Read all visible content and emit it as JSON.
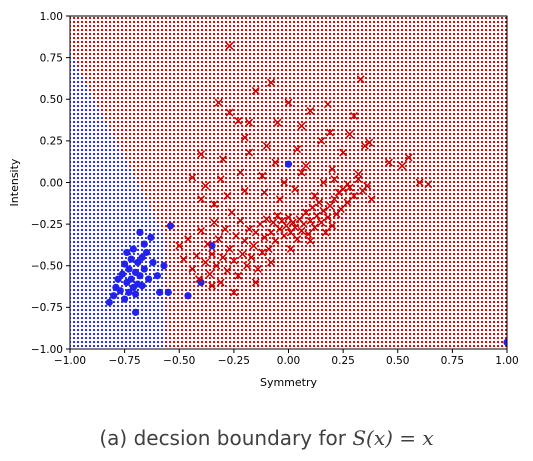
{
  "chart_data": {
    "type": "scatter",
    "title": "",
    "xlabel": "Symmetry",
    "ylabel": "Intensity",
    "xlim": [
      -1.0,
      1.0
    ],
    "ylim": [
      -1.0,
      1.0
    ],
    "xticks": [
      "−1.00",
      "−0.75",
      "−0.50",
      "−0.25",
      "0.00",
      "0.25",
      "0.50",
      "0.75",
      "1.00"
    ],
    "yticks": [
      "−1.00",
      "−0.75",
      "−0.50",
      "−0.25",
      "0.00",
      "0.25",
      "0.50",
      "0.75",
      "1.00"
    ],
    "grid": false,
    "legend": "none",
    "background_regions": [
      {
        "class": "blue",
        "color": "#2222ee",
        "boundary": [
          [
            -1.0,
            0.78
          ],
          [
            -0.56,
            -0.33
          ],
          [
            -0.56,
            -1.0
          ]
        ]
      },
      {
        "class": "red",
        "color": "#cc0000"
      }
    ],
    "series": [
      {
        "marker": "circle",
        "color": "#2222ee",
        "points": [
          [
            -0.82,
            -0.72
          ],
          [
            -0.8,
            -0.68
          ],
          [
            -0.79,
            -0.63
          ],
          [
            -0.78,
            -0.58
          ],
          [
            -0.77,
            -0.65
          ],
          [
            -0.76,
            -0.55
          ],
          [
            -0.75,
            -0.49
          ],
          [
            -0.75,
            -0.7
          ],
          [
            -0.74,
            -0.6
          ],
          [
            -0.74,
            -0.42
          ],
          [
            -0.73,
            -0.52
          ],
          [
            -0.73,
            -0.66
          ],
          [
            -0.72,
            -0.46
          ],
          [
            -0.72,
            -0.58
          ],
          [
            -0.71,
            -0.63
          ],
          [
            -0.71,
            -0.4
          ],
          [
            -0.7,
            -0.54
          ],
          [
            -0.7,
            -0.67
          ],
          [
            -0.69,
            -0.61
          ],
          [
            -0.69,
            -0.48
          ],
          [
            -0.68,
            -0.56
          ],
          [
            -0.68,
            -0.3
          ],
          [
            -0.67,
            -0.45
          ],
          [
            -0.67,
            -0.62
          ],
          [
            -0.66,
            -0.37
          ],
          [
            -0.66,
            -0.52
          ],
          [
            -0.65,
            -0.42
          ],
          [
            -0.64,
            -0.58
          ],
          [
            -0.63,
            -0.33
          ],
          [
            -0.62,
            -0.48
          ],
          [
            -0.6,
            -0.56
          ],
          [
            -0.59,
            -0.66
          ],
          [
            -0.57,
            -0.5
          ],
          [
            -0.55,
            -0.66
          ],
          [
            -0.54,
            -0.26
          ],
          [
            -0.46,
            -0.68
          ],
          [
            -0.4,
            -0.6
          ],
          [
            -0.35,
            -0.38
          ],
          [
            -0.7,
            -0.78
          ],
          [
            1.0,
            -0.96
          ],
          [
            0.0,
            0.11
          ]
        ]
      },
      {
        "marker": "x",
        "color": "#cc0000",
        "points": [
          [
            -0.5,
            -0.38
          ],
          [
            -0.48,
            -0.46
          ],
          [
            -0.46,
            -0.34
          ],
          [
            -0.44,
            -0.52
          ],
          [
            -0.42,
            -0.44
          ],
          [
            -0.41,
            -0.58
          ],
          [
            -0.4,
            -0.29
          ],
          [
            -0.38,
            -0.48
          ],
          [
            -0.37,
            -0.37
          ],
          [
            -0.36,
            -0.55
          ],
          [
            -0.35,
            -0.43
          ],
          [
            -0.34,
            -0.24
          ],
          [
            -0.33,
            -0.5
          ],
          [
            -0.32,
            -0.34
          ],
          [
            -0.31,
            -0.6
          ],
          [
            -0.3,
            -0.45
          ],
          [
            -0.29,
            -0.28
          ],
          [
            -0.28,
            -0.53
          ],
          [
            -0.27,
            -0.4
          ],
          [
            -0.26,
            -0.18
          ],
          [
            -0.25,
            -0.47
          ],
          [
            -0.24,
            -0.32
          ],
          [
            -0.23,
            -0.56
          ],
          [
            -0.22,
            -0.23
          ],
          [
            -0.21,
            -0.43
          ],
          [
            -0.2,
            -0.35
          ],
          [
            -0.19,
            -0.5
          ],
          [
            -0.18,
            -0.28
          ],
          [
            -0.17,
            -0.45
          ],
          [
            -0.16,
            -0.38
          ],
          [
            -0.15,
            -0.3
          ],
          [
            -0.14,
            -0.52
          ],
          [
            -0.13,
            -0.25
          ],
          [
            -0.12,
            -0.42
          ],
          [
            -0.11,
            -0.33
          ],
          [
            -0.1,
            -0.22
          ],
          [
            -0.09,
            -0.4
          ],
          [
            -0.08,
            -0.3
          ],
          [
            -0.07,
            -0.24
          ],
          [
            -0.06,
            -0.35
          ],
          [
            -0.05,
            -0.2
          ],
          [
            -0.04,
            -0.28
          ],
          [
            -0.03,
            -0.23
          ],
          [
            -0.02,
            -0.32
          ],
          [
            -0.01,
            -0.26
          ],
          [
            0.0,
            -0.21
          ],
          [
            0.01,
            -0.3
          ],
          [
            0.02,
            -0.24
          ],
          [
            0.03,
            -0.27
          ],
          [
            0.04,
            -0.34
          ],
          [
            0.05,
            -0.22
          ],
          [
            0.06,
            -0.29
          ],
          [
            0.07,
            -0.25
          ],
          [
            0.08,
            -0.18
          ],
          [
            0.09,
            -0.31
          ],
          [
            0.1,
            -0.23
          ],
          [
            0.11,
            -0.15
          ],
          [
            0.12,
            -0.27
          ],
          [
            0.13,
            -0.2
          ],
          [
            0.14,
            -0.12
          ],
          [
            0.15,
            -0.24
          ],
          [
            0.16,
            -0.17
          ],
          [
            0.17,
            -0.3
          ],
          [
            0.18,
            -0.21
          ],
          [
            0.19,
            -0.14
          ],
          [
            0.2,
            -0.26
          ],
          [
            0.21,
            -0.1
          ],
          [
            0.22,
            -0.19
          ],
          [
            0.23,
            -0.06
          ],
          [
            0.24,
            -0.16
          ],
          [
            0.25,
            -0.04
          ],
          [
            0.27,
            -0.12
          ],
          [
            0.28,
            -0.03
          ],
          [
            0.3,
            -0.08
          ],
          [
            0.32,
            0.02
          ],
          [
            0.34,
            -0.05
          ],
          [
            0.36,
            -0.02
          ],
          [
            0.38,
            -0.1
          ],
          [
            -0.27,
            0.82
          ],
          [
            0.33,
            0.62
          ],
          [
            0.0,
            0.48
          ],
          [
            0.18,
            0.47
          ],
          [
            0.1,
            0.43
          ],
          [
            -0.15,
            0.55
          ],
          [
            -0.27,
            0.42
          ],
          [
            -0.32,
            0.48
          ],
          [
            -0.23,
            0.37
          ],
          [
            -0.05,
            0.36
          ],
          [
            0.06,
            0.34
          ],
          [
            0.19,
            0.3
          ],
          [
            0.28,
            0.29
          ],
          [
            0.35,
            0.22
          ],
          [
            -0.2,
            0.27
          ],
          [
            -0.1,
            0.22
          ],
          [
            0.04,
            0.2
          ],
          [
            0.15,
            0.25
          ],
          [
            0.25,
            0.18
          ],
          [
            0.37,
            0.24
          ],
          [
            -0.4,
            0.17
          ],
          [
            -0.3,
            0.14
          ],
          [
            -0.18,
            0.18
          ],
          [
            -0.06,
            0.12
          ],
          [
            0.08,
            0.1
          ],
          [
            0.2,
            0.08
          ],
          [
            0.32,
            0.05
          ],
          [
            0.55,
            0.15
          ],
          [
            0.64,
            -0.01
          ],
          [
            -0.44,
            0.03
          ],
          [
            -0.38,
            -0.02
          ],
          [
            -0.31,
            0.02
          ],
          [
            -0.22,
            0.06
          ],
          [
            -0.12,
            0.04
          ],
          [
            -0.02,
            0.0
          ],
          [
            0.06,
            0.06
          ],
          [
            0.16,
            0.0
          ],
          [
            0.27,
            -0.01
          ],
          [
            -0.4,
            -0.1
          ],
          [
            -0.34,
            -0.13
          ],
          [
            -0.28,
            -0.08
          ],
          [
            -0.2,
            -0.05
          ],
          [
            -0.11,
            -0.06
          ],
          [
            -0.04,
            -0.1
          ],
          [
            0.03,
            -0.04
          ],
          [
            0.12,
            -0.08
          ],
          [
            0.21,
            0.02
          ],
          [
            -0.35,
            -0.62
          ],
          [
            -0.25,
            -0.66
          ],
          [
            -0.15,
            -0.6
          ],
          [
            -0.08,
            -0.48
          ],
          [
            0.01,
            -0.4
          ],
          [
            0.1,
            -0.35
          ],
          [
            0.46,
            0.12
          ],
          [
            0.52,
            0.1
          ],
          [
            0.6,
            0.0
          ],
          [
            -0.18,
            0.36
          ],
          [
            0.3,
            0.4
          ],
          [
            -0.08,
            0.6
          ]
        ]
      }
    ]
  },
  "caption": {
    "prefix": "(a) decsion boundary for ",
    "math": "S(x) = x"
  }
}
